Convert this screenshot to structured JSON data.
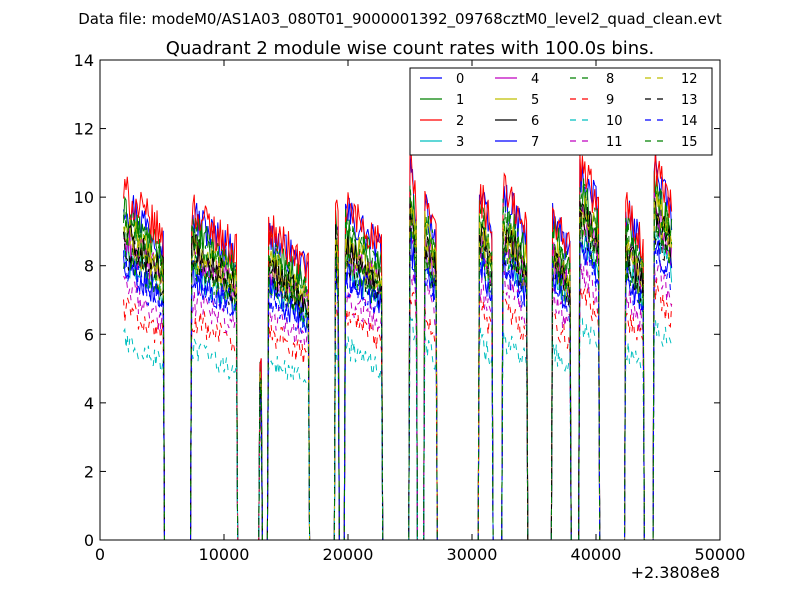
{
  "chart_data": {
    "type": "line",
    "suptitle": "Data file: modeM0/AS1A03_080T01_9000001392_09768cztM0_level2_quad_clean.evt",
    "title": "Quadrant 2 module wise count rates with 100.0s bins.",
    "xlabel": "",
    "ylabel": "",
    "xlim": [
      0,
      50000
    ],
    "ylim": [
      0,
      14
    ],
    "x_offset_label": "+2.3808e8",
    "x_ticks": [
      0,
      10000,
      20000,
      30000,
      40000,
      50000
    ],
    "x_tick_labels": [
      "0",
      "10000",
      "20000",
      "30000",
      "40000",
      "50000"
    ],
    "y_ticks": [
      0,
      2,
      4,
      6,
      8,
      10,
      12,
      14
    ],
    "y_tick_labels": [
      "0",
      "2",
      "4",
      "6",
      "8",
      "10",
      "12",
      "14"
    ],
    "grid": false,
    "legend_position": "top-right",
    "bin_size_s": 100,
    "data_start": 1900,
    "data_end": 46100,
    "segments": [
      [
        1900,
        5100,
        8.6
      ],
      [
        7400,
        11000,
        8.2
      ],
      [
        12850,
        13050,
        4.8
      ],
      [
        13600,
        16800,
        7.7
      ],
      [
        18950,
        19250,
        8.6
      ],
      [
        19750,
        22750,
        8.3
      ],
      [
        24950,
        25550,
        9.4
      ],
      [
        26150,
        27150,
        8.6
      ],
      [
        30550,
        31650,
        8.7
      ],
      [
        32450,
        34450,
        8.7
      ],
      [
        36450,
        37950,
        8.2
      ],
      [
        38650,
        40250,
        9.4
      ],
      [
        42350,
        43850,
        8.3
      ],
      [
        44650,
        46100,
        9.4
      ]
    ],
    "series": [
      {
        "name": "0",
        "color": "#0000ff",
        "dash": "solid",
        "level": 1.05
      },
      {
        "name": "1",
        "color": "#008000",
        "dash": "solid",
        "level": 1.0
      },
      {
        "name": "2",
        "color": "#ff0000",
        "dash": "solid",
        "level": 1.07
      },
      {
        "name": "3",
        "color": "#00bfbf",
        "dash": "solid",
        "level": 0.88
      },
      {
        "name": "4",
        "color": "#bf00bf",
        "dash": "solid",
        "level": 0.93
      },
      {
        "name": "5",
        "color": "#bfbf00",
        "dash": "solid",
        "level": 0.96
      },
      {
        "name": "6",
        "color": "#000000",
        "dash": "solid",
        "level": 0.94
      },
      {
        "name": "7",
        "color": "#0000ff",
        "dash": "solid",
        "level": 0.86
      },
      {
        "name": "8",
        "color": "#008000",
        "dash": "dashed",
        "level": 0.98
      },
      {
        "name": "9",
        "color": "#ff0000",
        "dash": "dashed",
        "level": 0.72
      },
      {
        "name": "10",
        "color": "#00bfbf",
        "dash": "dashed",
        "level": 0.62
      },
      {
        "name": "11",
        "color": "#bf00bf",
        "dash": "dashed",
        "level": 0.78
      },
      {
        "name": "12",
        "color": "#bfbf00",
        "dash": "dashed",
        "level": 0.92
      },
      {
        "name": "13",
        "color": "#000000",
        "dash": "dashed",
        "level": 0.9
      },
      {
        "name": "14",
        "color": "#0000ff",
        "dash": "dashed",
        "level": 0.84
      },
      {
        "name": "15",
        "color": "#008000",
        "dash": "dashed",
        "level": 0.89
      }
    ]
  }
}
